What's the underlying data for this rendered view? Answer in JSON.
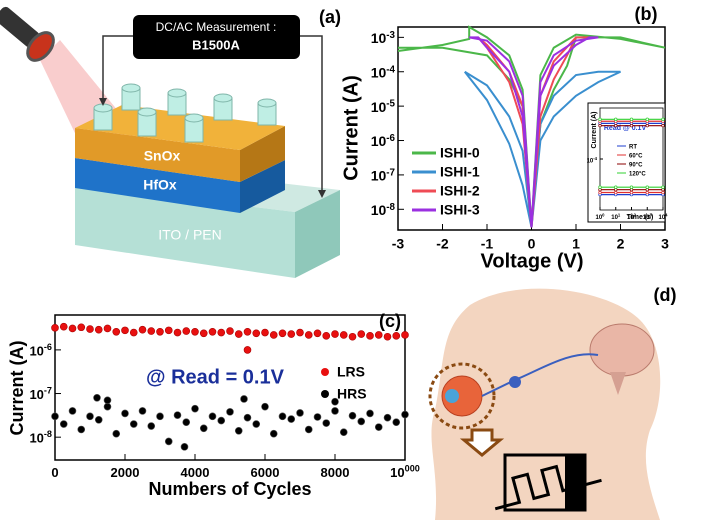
{
  "diagram_a": {
    "label": "(a)",
    "box_title": "DC/AC Measurement :",
    "box_value": "B1500A",
    "layers": [
      "SnOx",
      "HfOx",
      "ITO / PEN"
    ]
  },
  "diagram_d": {
    "label": "(d)"
  },
  "chart_data": [
    {
      "type": "line",
      "panel_label": "(b)",
      "xlabel": "Voltage (V)",
      "ylabel": "Current (A)",
      "xlim": [
        -3,
        3
      ],
      "xticks": [
        -3,
        -2,
        -1,
        0,
        1,
        2,
        3
      ],
      "log_y": true,
      "ylim": [
        2.5e-09,
        0.002
      ],
      "yticks": [
        {
          "value": 0.001,
          "label": "10-3"
        },
        {
          "value": 0.0001,
          "label": "10-4"
        },
        {
          "value": 1e-05,
          "label": "10-5"
        },
        {
          "value": 1e-06,
          "label": "10-6"
        },
        {
          "value": 1e-07,
          "label": "10-7"
        },
        {
          "value": 1e-08,
          "label": "10-8"
        }
      ],
      "legend": "lower left",
      "series": [
        {
          "name": "ISHI-0",
          "color": "#4bb749",
          "x": [
            -3,
            -2,
            -1.4,
            -1.4,
            -1,
            -0.5,
            -0.2,
            0,
            0.2,
            0.5,
            0.8,
            1,
            1.5,
            2,
            2.5,
            3,
            3,
            2,
            1,
            0.5,
            0.2,
            0,
            -0.2,
            -0.5,
            -1,
            -2,
            -3
          ],
          "values": [
            0.0004,
            0.0006,
            0.0009,
            0.002,
            0.001,
            0.0003,
            3e-05,
            3e-09,
            3e-06,
            3e-05,
            0.00015,
            0.001,
            0.001,
            0.001,
            0.0007,
            0.0005,
            0.0005,
            0.0009,
            0.0012,
            0.0005,
            8e-05,
            3e-09,
            1e-05,
            6e-05,
            0.0003,
            0.0005,
            0.0005
          ]
        },
        {
          "name": "ISHI-1",
          "color": "#3a8fcf",
          "x": [
            -1.5,
            -1,
            -0.5,
            -0.2,
            0,
            0.2,
            0.5,
            1,
            1.5,
            2,
            2,
            1.5,
            1,
            0.5,
            0.2,
            0,
            -0.2,
            -0.5,
            -1,
            -1.5
          ],
          "values": [
            0.0001,
            1.5e-05,
            8e-07,
            5e-08,
            3e-09,
            1e-06,
            5e-06,
            2e-05,
            5e-05,
            0.0001,
            0.0001,
            0.0001,
            8e-05,
            2e-05,
            3e-06,
            3e-09,
            5e-07,
            5e-06,
            4e-05,
            0.0001
          ]
        },
        {
          "name": "ISHI-2",
          "color": "#ef4b55",
          "x": [
            -1.2,
            -1,
            -0.5,
            -0.2,
            0,
            0.2,
            0.5,
            0.8,
            1,
            1.3,
            1.3,
            1,
            0.5,
            0.2,
            0,
            -0.2,
            -0.5,
            -1,
            -1.2
          ],
          "values": [
            0.001,
            0.0005,
            5e-05,
            3e-06,
            3e-09,
            5e-06,
            6e-05,
            0.0003,
            0.001,
            0.001,
            0.001,
            0.001,
            0.0002,
            2e-05,
            3e-09,
            1e-05,
            0.0001,
            0.0006,
            0.001
          ]
        },
        {
          "name": "ISHI-3",
          "color": "#9b30e0",
          "x": [
            -1.4,
            -1.2,
            -1,
            -0.5,
            -0.2,
            0,
            0.2,
            0.5,
            1,
            1.3,
            1.5,
            1.5,
            1,
            0.5,
            0.2,
            0,
            -0.2,
            -0.5,
            -1,
            -1.4
          ],
          "values": [
            0.001,
            0.001,
            0.0005,
            0.0001,
            5e-06,
            3e-09,
            2e-05,
            0.00015,
            0.0006,
            0.001,
            0.001,
            0.001,
            0.0008,
            0.0003,
            5e-05,
            3e-09,
            2e-05,
            0.0002,
            0.0008,
            0.001
          ]
        }
      ]
    },
    {
      "type": "line",
      "annotation": "Read @ 0.1V",
      "xlabel": "Time (s)",
      "ylabel": "Current (A)",
      "log_x": true,
      "xlim": [
        1,
        10000
      ],
      "xticks": [
        {
          "value": 1,
          "label": "100"
        },
        {
          "value": 10,
          "label": "101"
        },
        {
          "value": 100,
          "label": "102"
        },
        {
          "value": 1000,
          "label": "103"
        },
        {
          "value": 10000,
          "label": "104"
        }
      ],
      "log_y": true,
      "ylim": [
        1e-05,
        0.001
      ],
      "yticks": [
        {
          "value": 0.0001,
          "label": "10-4"
        }
      ],
      "x": [
        1,
        10,
        100,
        1000,
        10000
      ],
      "series": [
        {
          "name": "RT",
          "color": "#1f3fcf",
          "lrs_values": [
            0.0005,
            0.0005,
            0.0005,
            0.0005,
            0.0005
          ],
          "hrs_values": [
            2e-05,
            2e-05,
            2e-05,
            2e-05,
            2e-05
          ]
        },
        {
          "name": "60°C",
          "color": "#e03030",
          "lrs_values": [
            0.00055,
            0.00055,
            0.00055,
            0.00055,
            0.00055
          ],
          "hrs_values": [
            2.2e-05,
            2.2e-05,
            2.2e-05,
            2.2e-05,
            2.2e-05
          ]
        },
        {
          "name": "90°C",
          "color": "#8b0000",
          "lrs_values": [
            0.00045,
            0.00045,
            0.00045,
            0.00045,
            0.00045
          ],
          "hrs_values": [
            2.5e-05,
            2.5e-05,
            2.5e-05,
            2.5e-05,
            2.5e-05
          ]
        },
        {
          "name": "120°C",
          "color": "#30d030",
          "lrs_values": [
            0.0006,
            0.0006,
            0.0006,
            0.0006,
            0.0006
          ],
          "hrs_values": [
            2.8e-05,
            2.8e-05,
            2.8e-05,
            2.8e-05,
            2.8e-05
          ]
        }
      ]
    },
    {
      "type": "scatter",
      "panel_label": "(c)",
      "annotation": "@ Read = 0.1V",
      "xlabel": "Numbers of Cycles",
      "ylabel": "Current (A)",
      "xlim": [
        0,
        10000
      ],
      "xticks": [
        0,
        2000,
        4000,
        6000,
        8000,
        10000
      ],
      "log_y": true,
      "ylim": [
        3e-09,
        6.3e-06
      ],
      "yticks": [
        {
          "value": 1e-06,
          "label": "10-6"
        },
        {
          "value": 1e-07,
          "label": "10-7"
        },
        {
          "value": 1e-08,
          "label": "10-8"
        }
      ],
      "legend": "right",
      "series": [
        {
          "name": "LRS",
          "color": "#e81010",
          "x": [
            0,
            250,
            500,
            750,
            1000,
            1250,
            1500,
            1750,
            2000,
            2250,
            2500,
            2750,
            3000,
            3250,
            3500,
            3750,
            4000,
            4250,
            4500,
            4750,
            5000,
            5250,
            5500,
            5750,
            6000,
            6250,
            6500,
            6750,
            7000,
            7250,
            7500,
            7750,
            8000,
            8250,
            8500,
            8750,
            9000,
            9250,
            9500,
            9750,
            10000,
            5500
          ],
          "values": [
            3.2e-06,
            3.4e-06,
            3.1e-06,
            3.3e-06,
            3e-06,
            2.9e-06,
            3.1e-06,
            2.6e-06,
            2.8e-06,
            2.5e-06,
            2.9e-06,
            2.7e-06,
            2.6e-06,
            2.8e-06,
            2.5e-06,
            2.7e-06,
            2.6e-06,
            2.4e-06,
            2.6e-06,
            2.5e-06,
            2.7e-06,
            2.3e-06,
            2.6e-06,
            2.4e-06,
            2.5e-06,
            2.2e-06,
            2.4e-06,
            2.3e-06,
            2.5e-06,
            2.2e-06,
            2.4e-06,
            2.1e-06,
            2.3e-06,
            2.2e-06,
            2e-06,
            2.3e-06,
            2.1e-06,
            2.2e-06,
            2e-06,
            2.1e-06,
            2.2e-06,
            1e-06
          ]
        },
        {
          "name": "HRS",
          "color": "#000000",
          "x": [
            0,
            250,
            500,
            750,
            1000,
            1250,
            1500,
            1750,
            2000,
            2250,
            2500,
            2750,
            3000,
            3250,
            3500,
            3750,
            4000,
            4250,
            4500,
            4750,
            5000,
            5250,
            5500,
            5750,
            6000,
            6250,
            6500,
            6750,
            7000,
            7250,
            7500,
            7750,
            8000,
            8250,
            8500,
            8750,
            9000,
            9250,
            9500,
            9750,
            10000,
            1200,
            1500,
            5400,
            3700,
            8000
          ],
          "values": [
            3e-08,
            2e-08,
            4e-08,
            1.5e-08,
            3e-08,
            2.5e-08,
            5e-08,
            1.2e-08,
            3.5e-08,
            2e-08,
            4e-08,
            1.8e-08,
            3e-08,
            8e-09,
            3.2e-08,
            2.2e-08,
            4.5e-08,
            1.6e-08,
            3e-08,
            2.4e-08,
            3.8e-08,
            1.4e-08,
            2.8e-08,
            2e-08,
            5e-08,
            1.2e-08,
            3e-08,
            2.6e-08,
            3.6e-08,
            1.5e-08,
            2.9e-08,
            2.1e-08,
            4e-08,
            1.3e-08,
            3.1e-08,
            2.3e-08,
            3.5e-08,
            1.7e-08,
            2.8e-08,
            2.2e-08,
            3.3e-08,
            8e-08,
            7e-08,
            7.5e-08,
            6e-09,
            6.5e-08
          ]
        }
      ]
    }
  ]
}
